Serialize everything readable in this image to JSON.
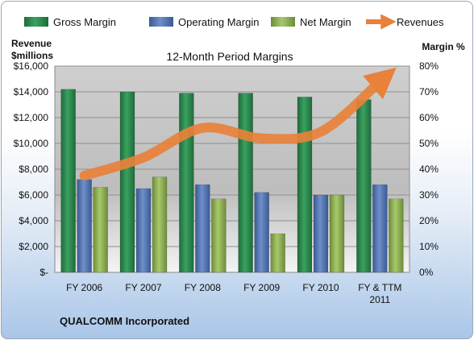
{
  "chart_data": {
    "type": "bar",
    "title": "12-Month Period Margins",
    "categories": [
      "FY 2006",
      "FY 2007",
      "FY 2008",
      "FY 2009",
      "FY 2010",
      "FY & TTM 2011"
    ],
    "y_left_label_lines": [
      "Revenue",
      "$millions"
    ],
    "y_right_label": "Margin %",
    "y_left_ticks": [
      "$-",
      "$2,000",
      "$4,000",
      "$6,000",
      "$8,000",
      "$10,000",
      "$12,000",
      "$14,000",
      "$16,000"
    ],
    "y_right_ticks": [
      "0%",
      "10%",
      "20%",
      "30%",
      "40%",
      "50%",
      "60%",
      "70%",
      "80%"
    ],
    "ylim_left": [
      0,
      16000
    ],
    "ylim_right": [
      0,
      80
    ],
    "series": [
      {
        "name": "Gross Margin",
        "axis": "right",
        "type": "bar",
        "color": "#2e8b4f",
        "values": [
          71,
          70,
          69.5,
          69.5,
          68,
          67
        ]
      },
      {
        "name": "Operating Margin",
        "axis": "right",
        "type": "bar",
        "color": "#4f72b0",
        "values": [
          36,
          32.5,
          34,
          31,
          30,
          34
        ]
      },
      {
        "name": "Net Margin",
        "axis": "right",
        "type": "bar",
        "color": "#8cae52",
        "values": [
          33,
          37,
          28.5,
          15,
          30,
          28.5
        ]
      },
      {
        "name": "Revenues",
        "axis": "left",
        "type": "line",
        "color": "#e8813a",
        "values": [
          7500,
          8900,
          11200,
          10400,
          10900,
          14800
        ]
      }
    ],
    "grid": true,
    "legend_position": "top"
  },
  "company_label": "QUALCOMM Incorporated"
}
